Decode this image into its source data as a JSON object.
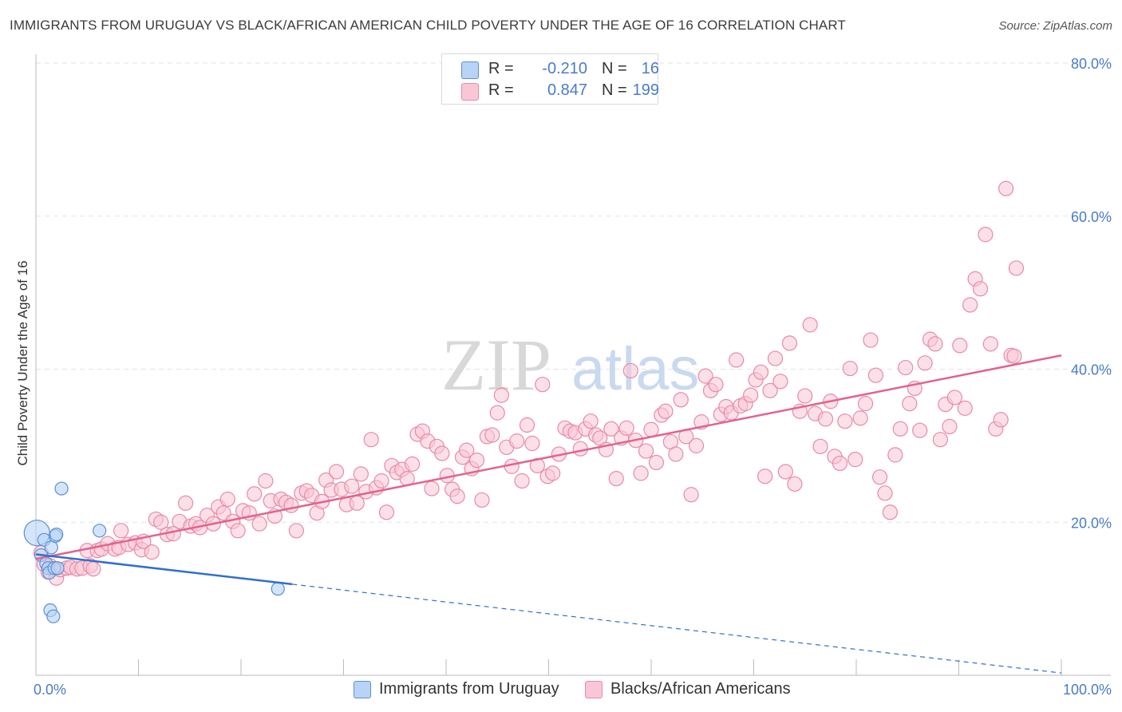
{
  "title": "IMMIGRANTS FROM URUGUAY VS BLACK/AFRICAN AMERICAN CHILD POVERTY UNDER THE AGE OF 16 CORRELATION CHART",
  "source": "Source: ZipAtlas.com",
  "watermark": {
    "zip": "ZIP",
    "atlas": "atlas"
  },
  "legend": {
    "r_label": "R =",
    "n_label": "N =",
    "rows": [
      {
        "r": "-0.210",
        "n": "16"
      },
      {
        "r": "0.847",
        "n": "199"
      }
    ]
  },
  "colors": {
    "uruguay_fill": "#b8d3f5",
    "uruguay_stroke": "#5b8fd6",
    "uruguay_line": "#2f6fd0",
    "black_fill": "#f9c6d6",
    "black_stroke": "#e88aa8",
    "black_line": "#e2638e",
    "tick_label": "#4a7cc7"
  },
  "chart_data": {
    "type": "scatter",
    "title": "IMMIGRANTS FROM URUGUAY VS BLACK/AFRICAN AMERICAN CHILD POVERTY UNDER THE AGE OF 16 CORRELATION CHART",
    "xlabel": "",
    "ylabel": "Child Poverty Under the Age of 16",
    "xlim": [
      0,
      100
    ],
    "ylim": [
      0,
      80
    ],
    "x_tick_labels": [
      "0.0%",
      "100.0%"
    ],
    "y_tick_labels": [
      "20.0%",
      "40.0%",
      "60.0%",
      "80.0%"
    ],
    "y_ticks": [
      20,
      40,
      60,
      80
    ],
    "grid": true,
    "legend_position": "top-center",
    "series": [
      {
        "name": "Immigrants from Uruguay",
        "r": -0.21,
        "n": 16,
        "points": [
          [
            0.1,
            18.6
          ],
          [
            0.5,
            15.7
          ],
          [
            0.8,
            17.7
          ],
          [
            1.0,
            14.6
          ],
          [
            1.2,
            14.0
          ],
          [
            1.3,
            13.4
          ],
          [
            1.4,
            8.5
          ],
          [
            1.5,
            16.7
          ],
          [
            1.7,
            7.7
          ],
          [
            1.8,
            14.0
          ],
          [
            1.9,
            18.2
          ],
          [
            2.0,
            18.4
          ],
          [
            2.1,
            14.0
          ],
          [
            2.5,
            24.4
          ],
          [
            6.2,
            18.9
          ],
          [
            23.6,
            11.3
          ]
        ],
        "trend": {
          "x0": 0,
          "y0": 15.8,
          "x1": 25,
          "y1": 11.9,
          "dashed_to_x": 100,
          "dashed_to_y": 0.3
        }
      },
      {
        "name": "Blacks/African Americans",
        "r": 0.847,
        "n": 199,
        "points": [
          [
            0.5,
            16.0
          ],
          [
            0.8,
            14.5
          ],
          [
            1.2,
            13.5
          ],
          [
            1.4,
            14.3
          ],
          [
            1.7,
            13.9
          ],
          [
            2.0,
            12.7
          ],
          [
            2.4,
            13.8
          ],
          [
            3.0,
            14.0
          ],
          [
            3.4,
            14.1
          ],
          [
            4.0,
            13.9
          ],
          [
            4.5,
            14.0
          ],
          [
            5.3,
            14.3
          ],
          [
            5.6,
            13.9
          ],
          [
            5.0,
            16.3
          ],
          [
            6.0,
            16.3
          ],
          [
            6.4,
            16.5
          ],
          [
            7.0,
            17.2
          ],
          [
            7.7,
            16.5
          ],
          [
            8.1,
            16.7
          ],
          [
            8.3,
            18.9
          ],
          [
            9.0,
            17.1
          ],
          [
            9.7,
            17.3
          ],
          [
            10.3,
            16.4
          ],
          [
            10.5,
            17.5
          ],
          [
            11.3,
            16.1
          ],
          [
            11.7,
            20.4
          ],
          [
            12.2,
            20.0
          ],
          [
            12.8,
            18.4
          ],
          [
            13.4,
            18.5
          ],
          [
            14.0,
            20.1
          ],
          [
            14.6,
            22.5
          ],
          [
            15.1,
            19.5
          ],
          [
            15.6,
            19.8
          ],
          [
            16.0,
            19.3
          ],
          [
            16.7,
            20.9
          ],
          [
            17.3,
            19.8
          ],
          [
            17.8,
            22.0
          ],
          [
            18.3,
            21.2
          ],
          [
            18.7,
            23.0
          ],
          [
            19.2,
            20.1
          ],
          [
            19.7,
            18.9
          ],
          [
            20.2,
            21.5
          ],
          [
            20.8,
            21.2
          ],
          [
            21.3,
            23.7
          ],
          [
            21.8,
            19.8
          ],
          [
            22.4,
            25.4
          ],
          [
            22.9,
            22.8
          ],
          [
            23.3,
            20.8
          ],
          [
            23.9,
            23.0
          ],
          [
            24.4,
            22.6
          ],
          [
            24.9,
            22.2
          ],
          [
            25.4,
            18.9
          ],
          [
            25.9,
            23.8
          ],
          [
            26.4,
            24.1
          ],
          [
            26.9,
            23.5
          ],
          [
            27.4,
            21.2
          ],
          [
            27.9,
            22.7
          ],
          [
            28.3,
            25.5
          ],
          [
            28.8,
            24.2
          ],
          [
            29.3,
            26.6
          ],
          [
            29.8,
            24.3
          ],
          [
            30.3,
            22.3
          ],
          [
            30.8,
            24.7
          ],
          [
            31.3,
            22.5
          ],
          [
            31.7,
            26.3
          ],
          [
            32.2,
            24.0
          ],
          [
            32.7,
            30.8
          ],
          [
            33.2,
            24.5
          ],
          [
            33.7,
            25.4
          ],
          [
            34.2,
            21.3
          ],
          [
            34.7,
            27.4
          ],
          [
            35.2,
            26.5
          ],
          [
            35.7,
            26.9
          ],
          [
            36.2,
            25.7
          ],
          [
            36.7,
            27.6
          ],
          [
            37.2,
            31.5
          ],
          [
            37.7,
            31.9
          ],
          [
            38.2,
            30.6
          ],
          [
            38.6,
            24.4
          ],
          [
            39.1,
            29.9
          ],
          [
            39.6,
            29.0
          ],
          [
            40.1,
            26.1
          ],
          [
            40.6,
            24.3
          ],
          [
            41.1,
            23.4
          ],
          [
            41.6,
            28.5
          ],
          [
            42.0,
            29.4
          ],
          [
            42.5,
            27.0
          ],
          [
            43.0,
            28.1
          ],
          [
            43.5,
            22.9
          ],
          [
            44.0,
            31.2
          ],
          [
            44.5,
            31.4
          ],
          [
            45.0,
            34.3
          ],
          [
            45.4,
            36.6
          ],
          [
            45.9,
            29.8
          ],
          [
            46.4,
            27.3
          ],
          [
            46.9,
            30.6
          ],
          [
            47.4,
            25.4
          ],
          [
            47.9,
            32.7
          ],
          [
            48.4,
            30.3
          ],
          [
            48.9,
            27.4
          ],
          [
            49.4,
            38.0
          ],
          [
            49.9,
            26.0
          ],
          [
            50.4,
            26.4
          ],
          [
            51.0,
            28.9
          ],
          [
            51.6,
            32.3
          ],
          [
            52.1,
            31.9
          ],
          [
            52.6,
            31.7
          ],
          [
            53.1,
            29.6
          ],
          [
            53.6,
            32.2
          ],
          [
            54.1,
            33.2
          ],
          [
            54.6,
            31.4
          ],
          [
            55.0,
            31.0
          ],
          [
            55.6,
            29.5
          ],
          [
            56.1,
            32.2
          ],
          [
            56.6,
            25.7
          ],
          [
            57.1,
            31.0
          ],
          [
            57.6,
            32.3
          ],
          [
            58.0,
            39.8
          ],
          [
            58.5,
            30.7
          ],
          [
            59.0,
            26.4
          ],
          [
            59.5,
            29.3
          ],
          [
            60.0,
            32.1
          ],
          [
            60.5,
            27.8
          ],
          [
            61.0,
            34.0
          ],
          [
            61.4,
            34.5
          ],
          [
            61.9,
            30.5
          ],
          [
            62.4,
            28.9
          ],
          [
            62.9,
            36.0
          ],
          [
            63.4,
            31.2
          ],
          [
            63.9,
            23.6
          ],
          [
            64.4,
            30.0
          ],
          [
            64.9,
            33.1
          ],
          [
            65.3,
            39.1
          ],
          [
            65.8,
            37.2
          ],
          [
            66.3,
            38.0
          ],
          [
            66.8,
            34.1
          ],
          [
            67.3,
            35.1
          ],
          [
            67.8,
            34.3
          ],
          [
            68.3,
            41.2
          ],
          [
            68.7,
            35.2
          ],
          [
            69.2,
            35.5
          ],
          [
            69.7,
            36.6
          ],
          [
            70.2,
            38.6
          ],
          [
            70.7,
            39.6
          ],
          [
            71.1,
            26.0
          ],
          [
            71.6,
            37.2
          ],
          [
            72.1,
            41.4
          ],
          [
            72.6,
            38.4
          ],
          [
            73.1,
            26.6
          ],
          [
            73.5,
            43.4
          ],
          [
            74.0,
            25.0
          ],
          [
            74.5,
            34.5
          ],
          [
            75.0,
            36.5
          ],
          [
            75.5,
            45.8
          ],
          [
            76.0,
            34.2
          ],
          [
            76.5,
            29.9
          ],
          [
            77.0,
            33.5
          ],
          [
            77.5,
            35.8
          ],
          [
            77.9,
            28.6
          ],
          [
            78.4,
            27.7
          ],
          [
            78.9,
            33.2
          ],
          [
            79.4,
            40.1
          ],
          [
            79.9,
            28.2
          ],
          [
            80.4,
            33.6
          ],
          [
            80.9,
            35.5
          ],
          [
            81.4,
            43.8
          ],
          [
            81.9,
            39.2
          ],
          [
            82.3,
            25.9
          ],
          [
            82.8,
            23.8
          ],
          [
            83.3,
            21.3
          ],
          [
            83.8,
            28.8
          ],
          [
            84.3,
            32.2
          ],
          [
            84.8,
            40.2
          ],
          [
            85.2,
            35.5
          ],
          [
            85.7,
            37.5
          ],
          [
            86.2,
            32.0
          ],
          [
            86.7,
            40.8
          ],
          [
            87.2,
            43.9
          ],
          [
            87.7,
            43.3
          ],
          [
            88.2,
            30.8
          ],
          [
            88.7,
            35.4
          ],
          [
            89.1,
            32.5
          ],
          [
            89.6,
            36.3
          ],
          [
            90.1,
            43.1
          ],
          [
            90.6,
            34.9
          ],
          [
            91.1,
            48.4
          ],
          [
            91.6,
            51.8
          ],
          [
            92.1,
            50.5
          ],
          [
            92.6,
            57.6
          ],
          [
            93.1,
            43.3
          ],
          [
            93.6,
            32.2
          ],
          [
            94.1,
            33.4
          ],
          [
            94.6,
            63.6
          ],
          [
            95.1,
            41.8
          ],
          [
            95.6,
            53.2
          ],
          [
            95.4,
            41.7
          ]
        ],
        "trend": {
          "x0": 0,
          "y0": 15.2,
          "x1": 100,
          "y1": 41.8
        }
      }
    ]
  }
}
